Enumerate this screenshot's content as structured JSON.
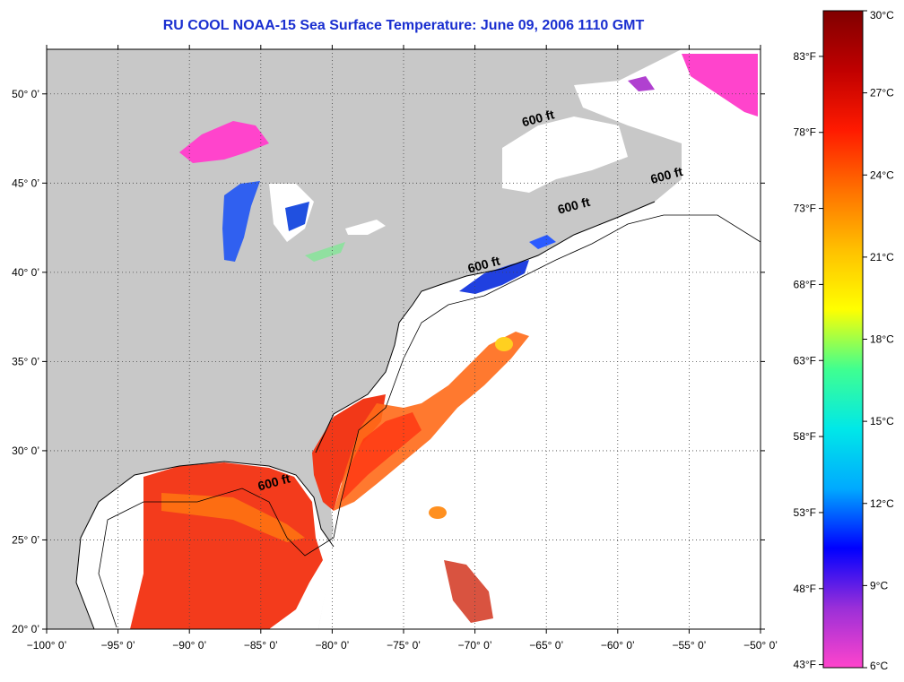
{
  "title": "RU COOL  NOAA-15  Sea Surface Temperature:  June 09, 2006 1110 GMT",
  "map": {
    "lon_range": [
      -100,
      -50
    ],
    "lat_range": [
      20,
      52.5
    ],
    "lon_ticks": [
      -100,
      -95,
      -90,
      -85,
      -80,
      -75,
      -70,
      -65,
      -60,
      -55,
      -50
    ],
    "lat_ticks": [
      20,
      25,
      30,
      35,
      40,
      45,
      50
    ],
    "lon_tick_labels": [
      "−100° 0’",
      "−95° 0’",
      "−90° 0’",
      "−85° 0’",
      "−80° 0’",
      "−75° 0’",
      "−70° 0’",
      "−65° 0’",
      "−60° 0’",
      "−55° 0’",
      "−50° 0’"
    ],
    "lat_tick_labels": [
      "20° 0’",
      "25° 0’",
      "30° 0’",
      "35° 0’",
      "40° 0’",
      "45° 0’",
      "50° 0’"
    ],
    "land_color": "#c8c8c8",
    "ocean_color": "#ffffff",
    "grid": "dotted"
  },
  "contour_labels": [
    {
      "text": "600 ft",
      "lon": -65.5,
      "lat": 48.4
    },
    {
      "text": "600 ft",
      "lon": -56.5,
      "lat": 45.2
    },
    {
      "text": "600 ft",
      "lon": -63.0,
      "lat": 43.5
    },
    {
      "text": "600 ft",
      "lon": -69.3,
      "lat": 40.2
    },
    {
      "text": "600 ft",
      "lon": -84.0,
      "lat": 28.0
    }
  ],
  "colorbar": {
    "colors": [
      "#ff44cc",
      "#9a2fd8",
      "#0000ff",
      "#00aaff",
      "#00e8e8",
      "#40ff90",
      "#ffff00",
      "#ffc000",
      "#ff7000",
      "#ff1a00",
      "#c00000",
      "#800000"
    ],
    "celsius": {
      "min": 6,
      "max": 30,
      "ticks": [
        6,
        9,
        12,
        15,
        18,
        21,
        24,
        27,
        30
      ],
      "labels": [
        "6°C",
        "9°C",
        "12°C",
        "15°C",
        "18°C",
        "21°C",
        "24°C",
        "27°C",
        "30°C"
      ]
    },
    "fahrenheit": {
      "ticks": [
        43,
        48,
        53,
        58,
        63,
        68,
        73,
        78,
        83
      ],
      "labels": [
        "43°F",
        "48°F",
        "53°F",
        "58°F",
        "63°F",
        "68°F",
        "73°F",
        "78°F",
        "83°F"
      ]
    }
  },
  "sst_regions": [
    {
      "name": "gulf-of-mexico",
      "temp_c": 27
    },
    {
      "name": "gulf-stream",
      "temp_c": 25.5
    },
    {
      "name": "lake-superior",
      "temp_c": 6.5
    },
    {
      "name": "lake-michigan",
      "temp_c": 11
    },
    {
      "name": "gulf-of-maine",
      "temp_c": 10
    },
    {
      "name": "labrador",
      "temp_c": 6
    }
  ]
}
